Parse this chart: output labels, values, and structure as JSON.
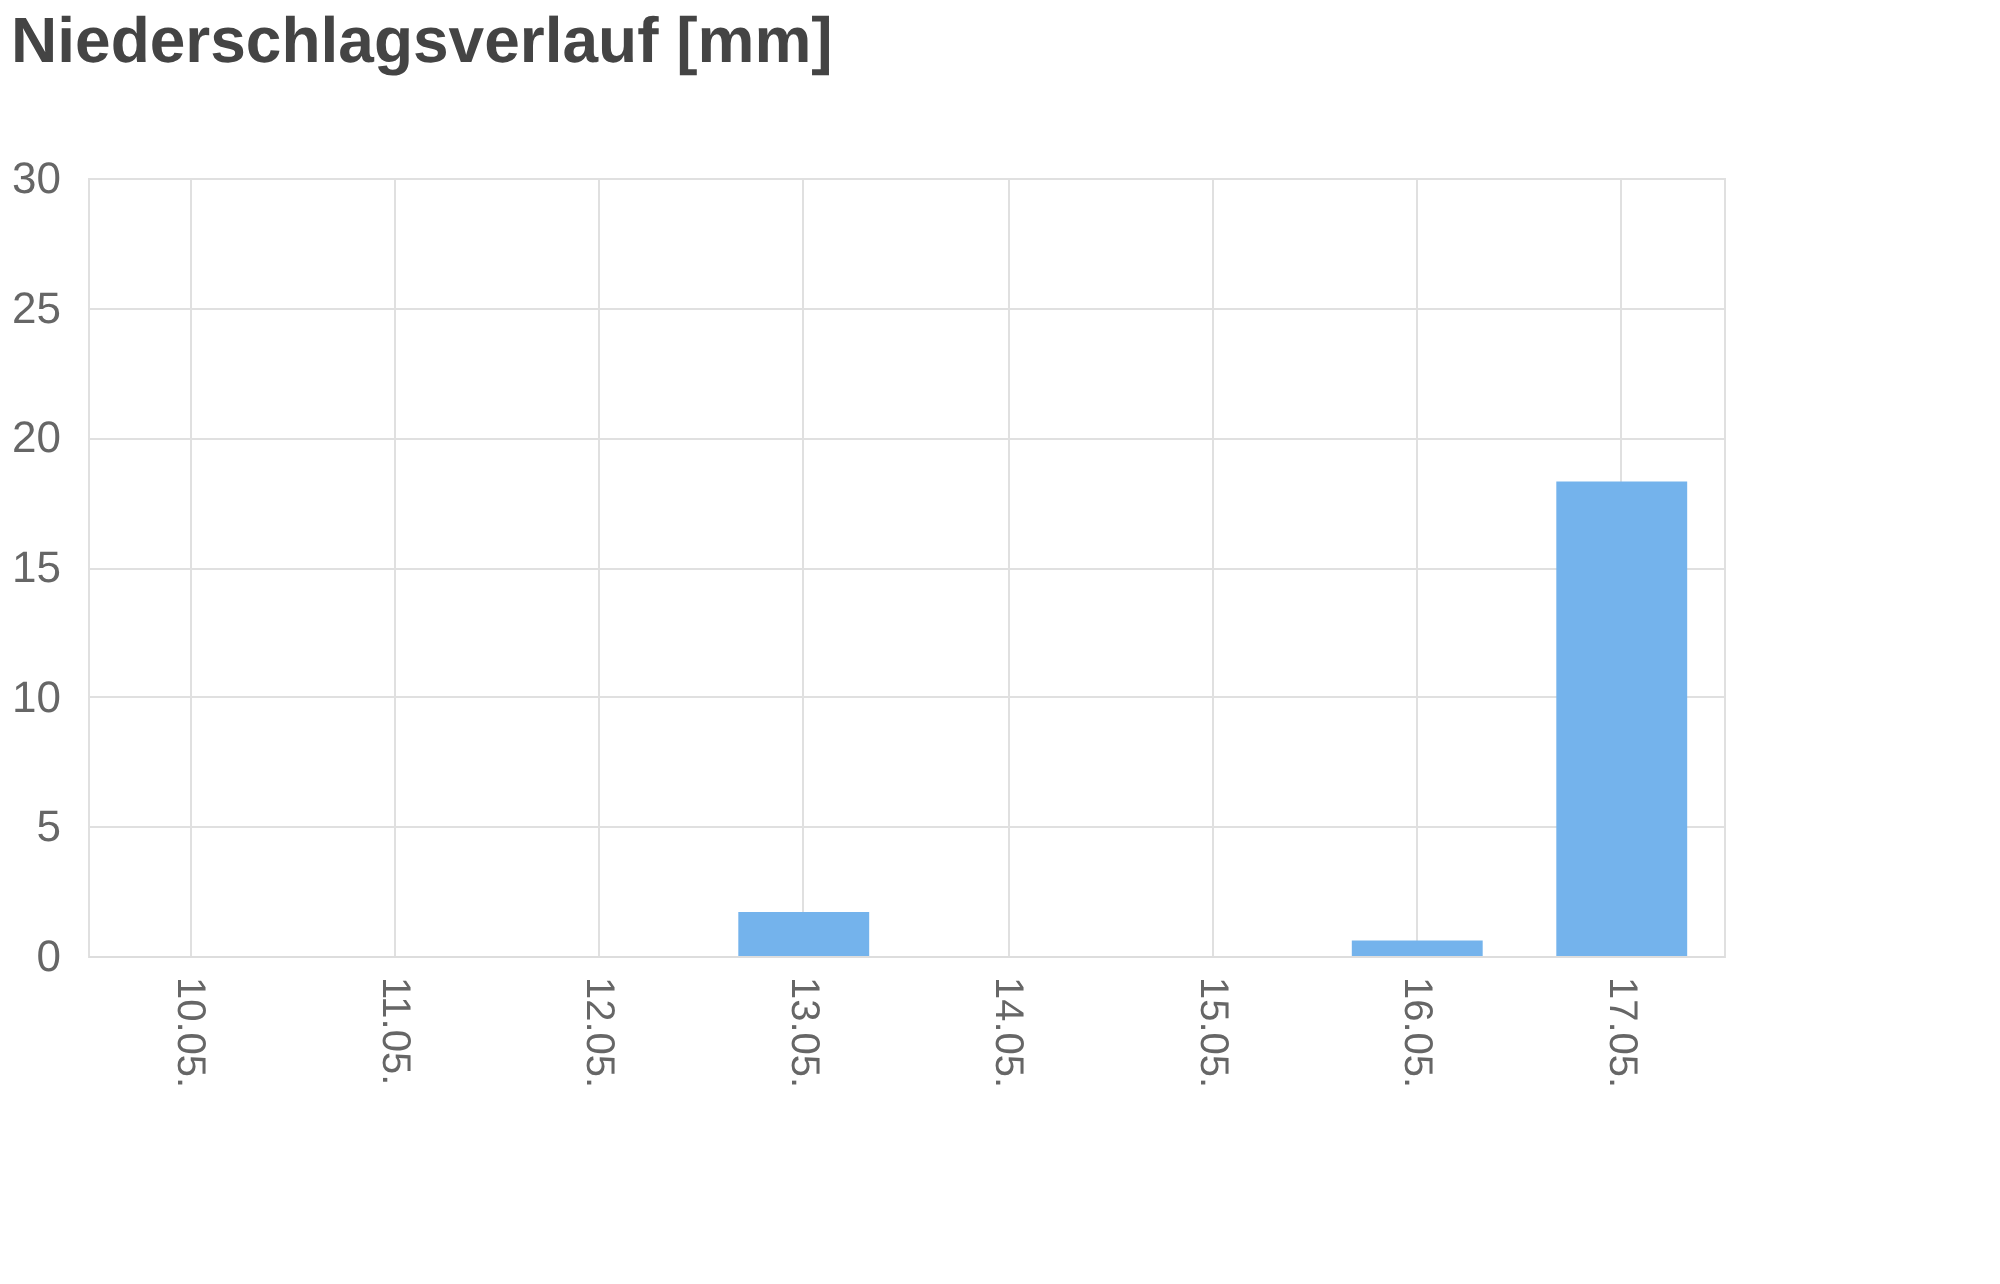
{
  "chart_data": {
    "type": "bar",
    "title": "Niederschlagsverlauf [mm]",
    "categories": [
      "10.05.",
      "11.05.",
      "12.05.",
      "13.05.",
      "14.05.",
      "15.05.",
      "16.05.",
      "17.05."
    ],
    "values": [
      0,
      0,
      0,
      1.7,
      0,
      0,
      0.6,
      18.3
    ],
    "color": "#74b3ec",
    "ylim": [
      0,
      30
    ],
    "yticks": [
      0,
      5,
      10,
      15,
      20,
      25,
      30
    ],
    "grid": true
  }
}
